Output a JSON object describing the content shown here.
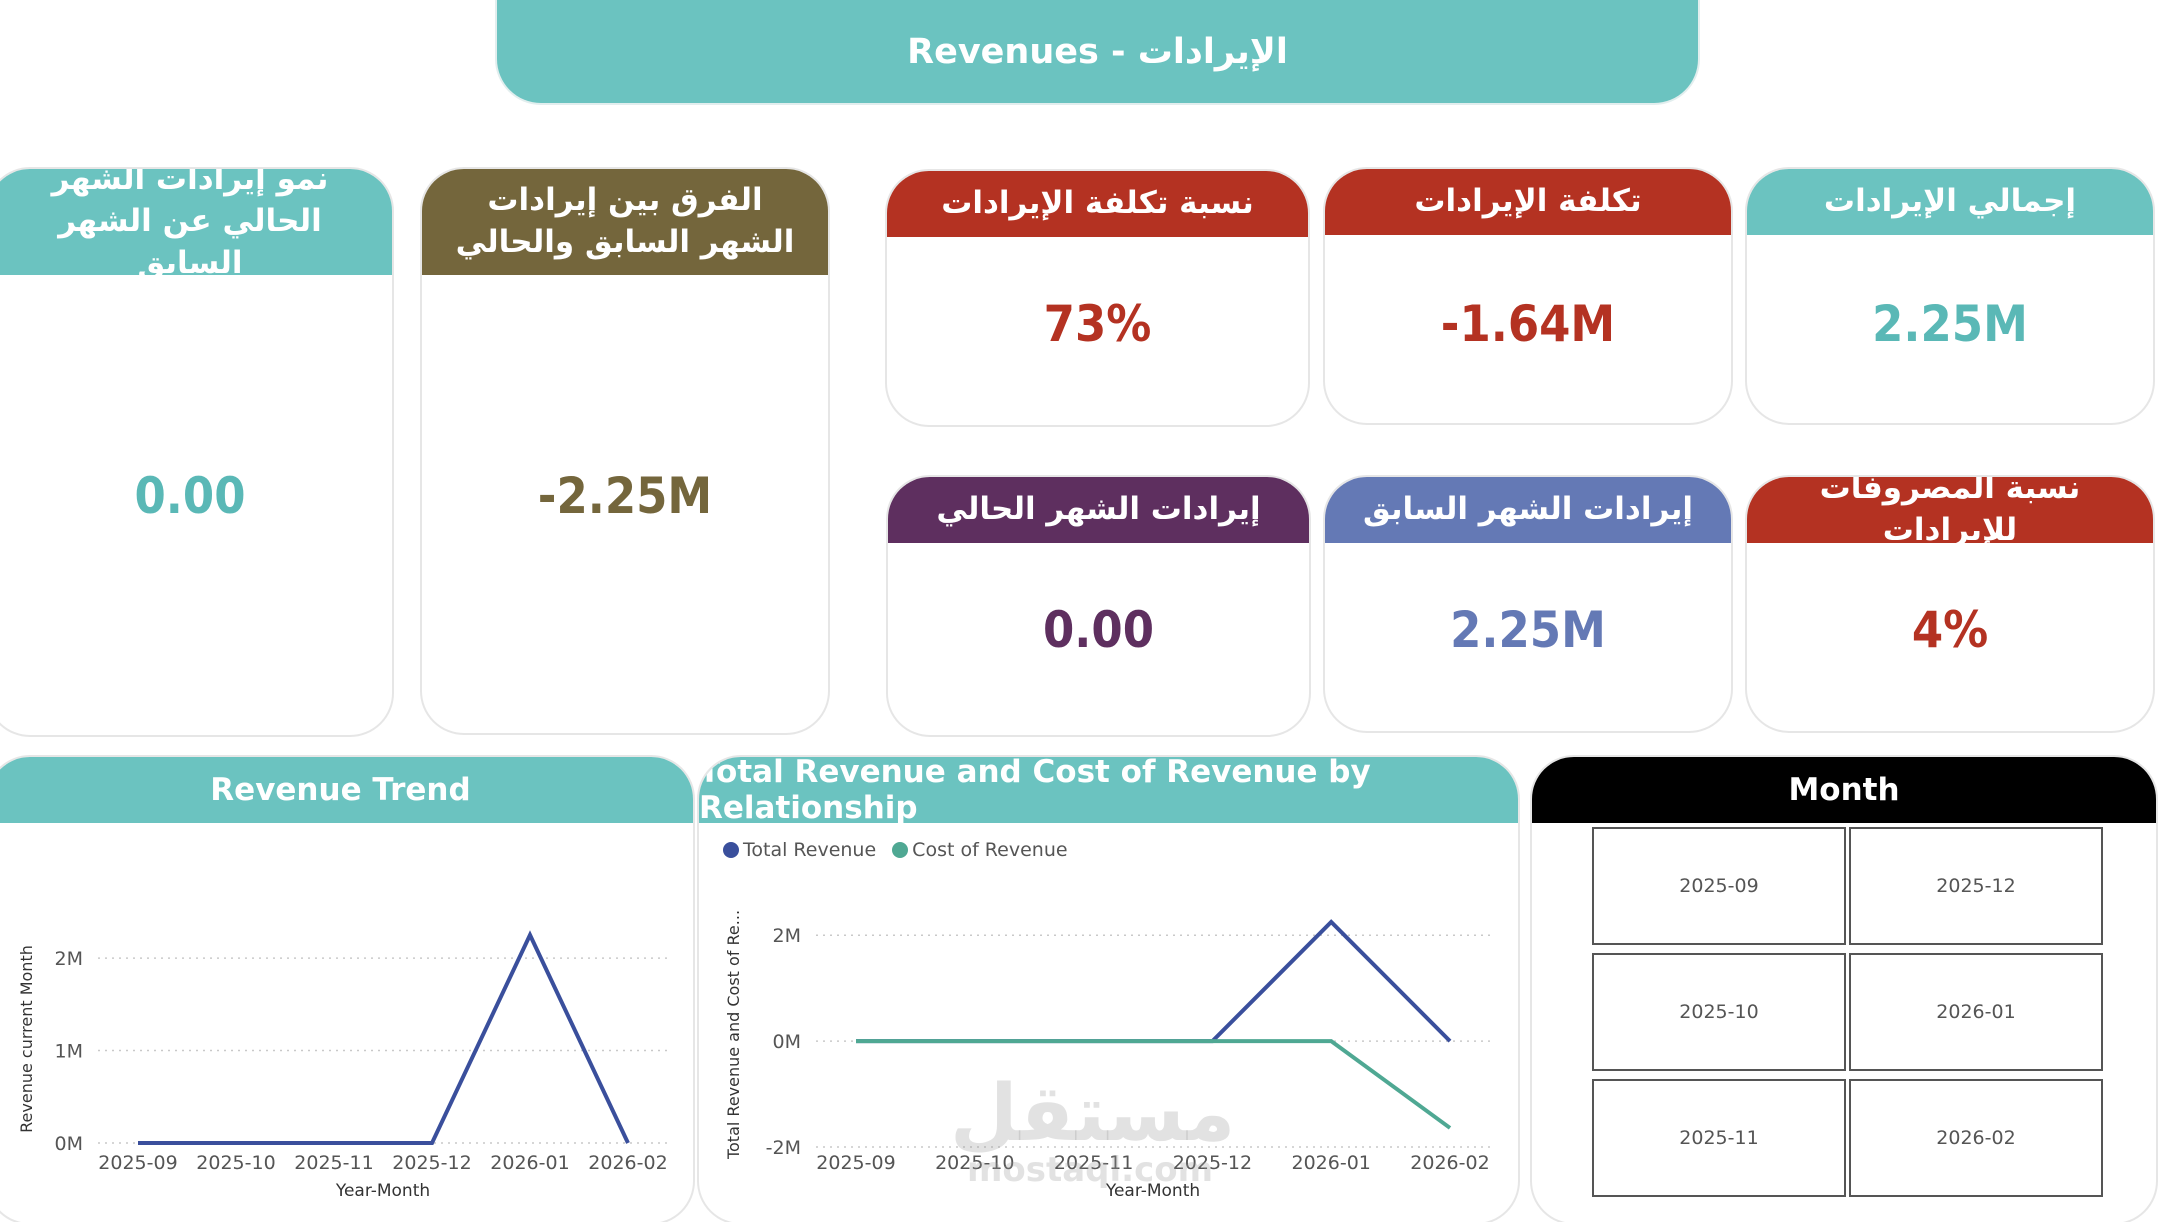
{
  "banner": {
    "title": "Revenues - الإيرادات",
    "color": "#6bc3c0"
  },
  "kpis": {
    "total_revenue": {
      "label": "إجمالي الإيرادات",
      "value": "2.25M",
      "header_color": "#6bc3c0",
      "value_color": "#5ab8b6"
    },
    "cost_of_revenue": {
      "label": "تكلفة الإيرادات",
      "value": "-1.64M",
      "header_color": "#b43222",
      "value_color": "#b43222"
    },
    "cost_ratio": {
      "label": "نسبة تكلفة الإيرادات",
      "value": "73%",
      "header_color": "#b43222",
      "value_color": "#b43222"
    },
    "expense_ratio": {
      "label": "نسبة المصروفات للإيرادات",
      "value": "4%",
      "header_color": "#b43222",
      "value_color": "#b43222"
    },
    "previous_month": {
      "label": "إيرادات الشهر السابق",
      "value": "2.25M",
      "header_color": "#6479b5",
      "value_color": "#6479b5"
    },
    "current_month": {
      "label": "إيرادات الشهر الحالي",
      "value": "0.00",
      "header_color": "#5e2f5f",
      "value_color": "#5e2f5f"
    },
    "difference": {
      "label": "الفرق بين إيرادات الشهر السابق والحالي",
      "value": "-2.25M",
      "header_color": "#74663c",
      "value_color": "#74663c"
    },
    "growth": {
      "label": "نمو إيرادات الشهر الحالي عن الشهر السابق",
      "value": "0.00",
      "header_color": "#6bc3c0",
      "value_color": "#5ab8b6"
    }
  },
  "revenue_trend": {
    "title": "Revenue Trend"
  },
  "relationship": {
    "title": "Total Revenue and Cost of Revenue by Relationship",
    "legend": [
      "Total Revenue",
      "Cost of Revenue"
    ]
  },
  "month_slicer": {
    "title": "Month",
    "options": [
      "2025-09",
      "2025-12",
      "2025-10",
      "2026-01",
      "2025-11",
      "2026-02"
    ]
  },
  "watermark": {
    "arabic": "مستقل",
    "latin": "mostaql.com"
  },
  "chart_data": [
    {
      "type": "line",
      "title": "Revenue Trend",
      "xlabel": "Year-Month",
      "ylabel": "Revenue current Month",
      "x": [
        "2025-09",
        "2025-10",
        "2025-11",
        "2025-12",
        "2026-01",
        "2026-02"
      ],
      "y_ticks": [
        "0M",
        "1M",
        "2M"
      ],
      "ylim": [
        0,
        2.25
      ],
      "series": [
        {
          "values": [
            0,
            0,
            0,
            0,
            2.25,
            0
          ],
          "color": "#3a4f9c"
        }
      ]
    },
    {
      "type": "line",
      "title": "Total Revenue and Cost of Revenue by Relationship",
      "xlabel": "Year-Month",
      "ylabel": "Total Revenue and Cost of Re...",
      "x": [
        "2025-09",
        "2025-10",
        "2025-11",
        "2025-12",
        "2026-01",
        "2026-02"
      ],
      "y_ticks": [
        "-2M",
        "0M",
        "2M"
      ],
      "ylim": [
        -2,
        2.25
      ],
      "legend": "top-left",
      "series": [
        {
          "name": "Total Revenue",
          "values": [
            0,
            0,
            0,
            0,
            2.25,
            0
          ],
          "color": "#3a4f9c"
        },
        {
          "name": "Cost of Revenue",
          "values": [
            0,
            0,
            0,
            0,
            0,
            -1.64
          ],
          "color": "#4fa893"
        }
      ]
    }
  ]
}
